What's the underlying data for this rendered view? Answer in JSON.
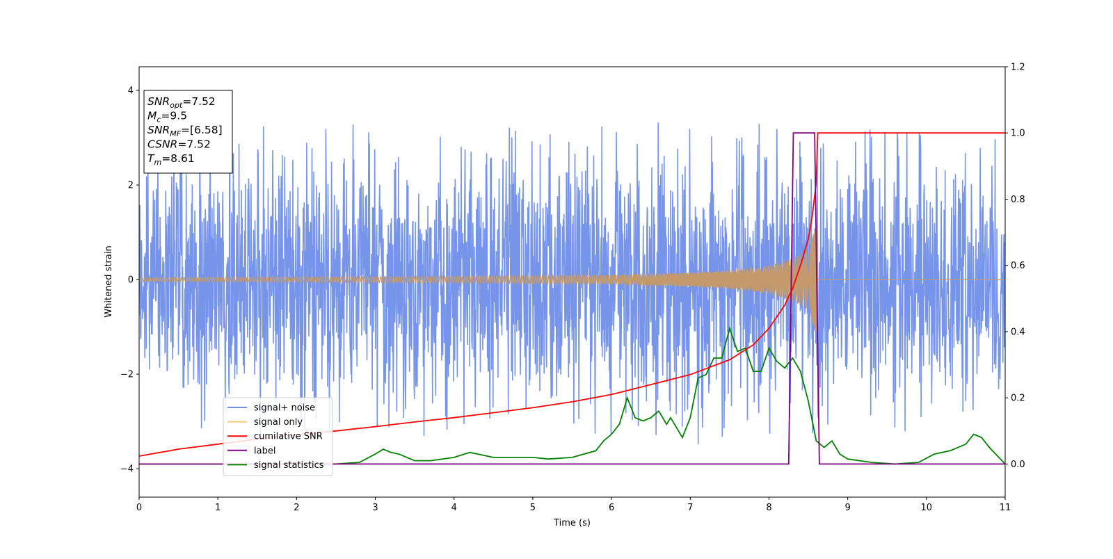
{
  "chart_data": {
    "type": "line",
    "xlabel": "Time (s)",
    "ylabel": "Whitened strain",
    "xlim": [
      0,
      11
    ],
    "ylim": [
      -4.6,
      4.5
    ],
    "y2lim": [
      -0.1,
      1.2
    ],
    "x_ticks": [
      0,
      1,
      2,
      3,
      4,
      5,
      6,
      7,
      8,
      9,
      10,
      11
    ],
    "y_ticks": [
      -4,
      -2,
      0,
      2,
      4
    ],
    "y_tick_labels": [
      "−4",
      "−2",
      "0",
      "2",
      "4"
    ],
    "y2_ticks": [
      0.0,
      0.2,
      0.4,
      0.6,
      0.8,
      1.0,
      1.2
    ],
    "y2_tick_labels": [
      "0.0",
      "0.2",
      "0.4",
      "0.6",
      "0.8",
      "1.0",
      "1.2"
    ],
    "grid": false,
    "legend_placement": "lower-left",
    "info_box": {
      "lines": [
        {
          "base": "SNR",
          "sub": "opt",
          "value": "=7.52"
        },
        {
          "base": "M",
          "sub": "c",
          "value": "=9.5"
        },
        {
          "base": "SNR",
          "sub": "MF",
          "value": "=[6.58]"
        },
        {
          "base": "CSNR",
          "sub": "",
          "value": "=7.52"
        },
        {
          "base": "T",
          "sub": "m",
          "value": "=8.61"
        }
      ]
    },
    "series": [
      {
        "name": "signal+ noise",
        "axis": "left",
        "color": "#6f8ee8",
        "kind": "noise_envelope",
        "x": [
          0,
          1,
          2,
          3,
          4,
          5,
          6,
          7,
          8,
          8.6,
          9,
          10,
          11
        ],
        "upper": [
          3.2,
          3.4,
          3.3,
          3.3,
          3.2,
          3.4,
          3.3,
          3.4,
          3.3,
          3.5,
          3.3,
          3.2,
          3.0
        ],
        "lower": [
          -3.1,
          -3.6,
          -3.5,
          -3.3,
          -3.4,
          -3.3,
          -3.3,
          -3.5,
          -3.3,
          -3.4,
          -3.2,
          -3.3,
          -2.7
        ],
        "core": 1.1
      },
      {
        "name": "signal only",
        "axis": "left",
        "color": "#f5b342",
        "kind": "chirp",
        "x": [
          0,
          4,
          6,
          7,
          7.5,
          8,
          8.3,
          8.5,
          8.61
        ],
        "amplitude": [
          0.04,
          0.07,
          0.1,
          0.15,
          0.2,
          0.3,
          0.45,
          0.65,
          1.15
        ],
        "merger": 8.61
      },
      {
        "name": "cumilative SNR",
        "axis": "right",
        "color": "#ff0000",
        "x": [
          0,
          0.5,
          1,
          1.5,
          2,
          2.5,
          3,
          3.5,
          4,
          4.5,
          5,
          5.5,
          6,
          6.5,
          7,
          7.5,
          7.8,
          8.0,
          8.2,
          8.3,
          8.4,
          8.5,
          8.55,
          8.6,
          8.62,
          9,
          10,
          11
        ],
        "values": [
          0.024,
          0.045,
          0.06,
          0.075,
          0.088,
          0.1,
          0.113,
          0.127,
          0.14,
          0.155,
          0.17,
          0.188,
          0.21,
          0.24,
          0.27,
          0.315,
          0.36,
          0.41,
          0.48,
          0.53,
          0.6,
          0.68,
          0.75,
          0.85,
          1.0,
          1.0,
          1.0,
          1.0
        ]
      },
      {
        "name": "label",
        "axis": "right",
        "color": "#800080",
        "x": [
          0,
          8.25,
          8.31,
          8.58,
          8.64,
          11
        ],
        "values": [
          0,
          0,
          1,
          1,
          0,
          0
        ]
      },
      {
        "name": "signal statistics",
        "axis": "right",
        "color": "#008000",
        "x": [
          0,
          0.5,
          1,
          1.5,
          2,
          2.5,
          2.8,
          3.0,
          3.1,
          3.2,
          3.3,
          3.5,
          3.7,
          4.0,
          4.2,
          4.5,
          4.8,
          5.0,
          5.2,
          5.5,
          5.8,
          5.9,
          6.0,
          6.1,
          6.2,
          6.3,
          6.4,
          6.5,
          6.6,
          6.7,
          6.75,
          6.9,
          7.0,
          7.1,
          7.2,
          7.3,
          7.4,
          7.5,
          7.6,
          7.7,
          7.8,
          7.9,
          8.0,
          8.05,
          8.1,
          8.2,
          8.3,
          8.4,
          8.5,
          8.6,
          8.7,
          8.8,
          8.9,
          9.0,
          9.3,
          9.6,
          9.9,
          10.1,
          10.3,
          10.5,
          10.6,
          10.7,
          10.8,
          11.0
        ],
        "values": [
          0.0,
          0.0,
          0.0,
          0.0,
          0.0,
          0.0,
          0.005,
          0.03,
          0.045,
          0.035,
          0.03,
          0.01,
          0.01,
          0.02,
          0.035,
          0.02,
          0.02,
          0.02,
          0.015,
          0.02,
          0.04,
          0.07,
          0.09,
          0.12,
          0.2,
          0.14,
          0.13,
          0.14,
          0.16,
          0.12,
          0.14,
          0.08,
          0.14,
          0.26,
          0.27,
          0.32,
          0.32,
          0.41,
          0.34,
          0.35,
          0.28,
          0.28,
          0.35,
          0.33,
          0.31,
          0.29,
          0.32,
          0.28,
          0.19,
          0.07,
          0.05,
          0.07,
          0.03,
          0.015,
          0.005,
          0.0,
          0.005,
          0.03,
          0.04,
          0.06,
          0.09,
          0.08,
          0.05,
          0.0
        ]
      }
    ]
  }
}
